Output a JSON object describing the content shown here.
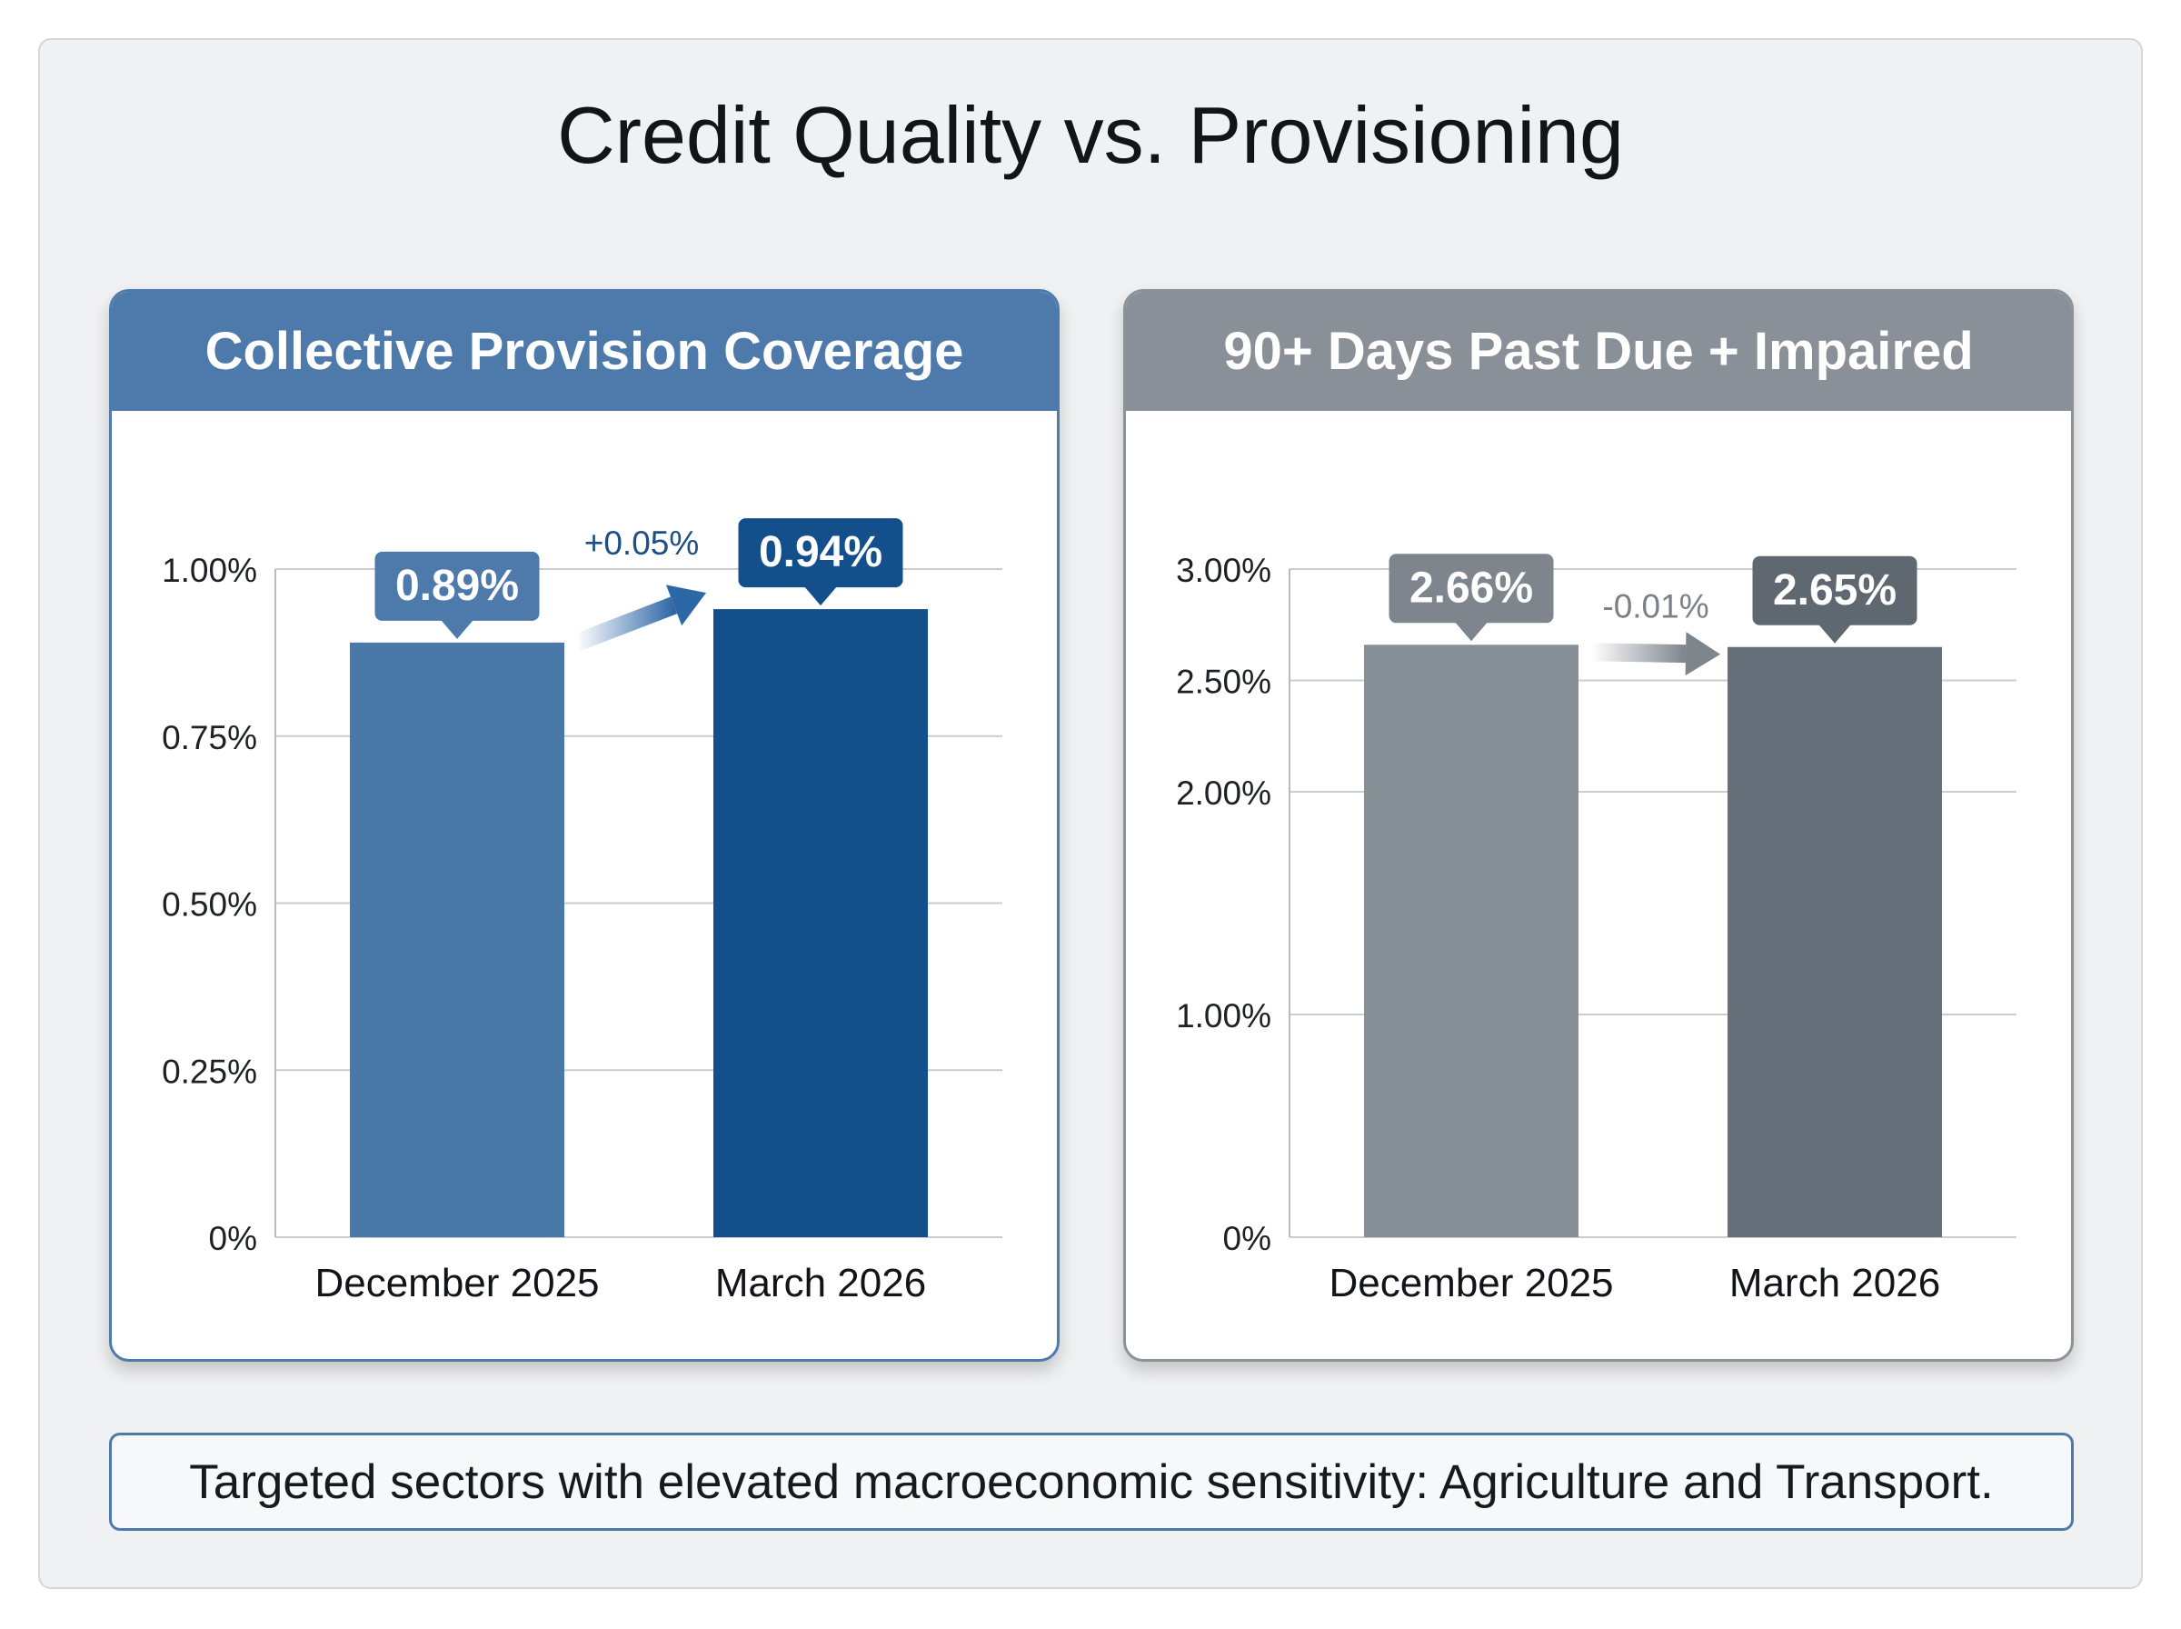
{
  "title": "Credit Quality vs. Provisioning",
  "footnote": "Targeted sectors with elevated macroeconomic sensitivity: Agriculture and Transport.",
  "chart_data": [
    {
      "type": "bar",
      "title": "Collective Provision Coverage",
      "categories": [
        "December 2025",
        "March 2026"
      ],
      "values": [
        0.89,
        0.94
      ],
      "value_labels": [
        "0.89%",
        "0.94%"
      ],
      "ylim": [
        0,
        1.0
      ],
      "y_ticks": [
        0,
        0.25,
        0.5,
        0.75,
        1.0
      ],
      "y_tick_labels": [
        "0%",
        "0.25%",
        "0.50%",
        "0.75%",
        "1.00%"
      ],
      "change_label": "+0.05%",
      "grid": true,
      "colors": {
        "bars": [
          "#4a78a9",
          "#134f8b"
        ],
        "header": "#4d7aab",
        "labels": [
          "#4d7aab",
          "#134f8b"
        ],
        "change": "#1d4f86",
        "arrow": "#2e67a6"
      }
    },
    {
      "type": "bar",
      "title": "90+ Days Past Due + Impaired",
      "categories": [
        "December 2025",
        "March 2026"
      ],
      "values": [
        2.66,
        2.65
      ],
      "value_labels": [
        "2.66%",
        "2.65%"
      ],
      "ylim": [
        0,
        3.0
      ],
      "y_ticks": [
        0,
        1.0,
        2.0,
        2.5,
        3.0
      ],
      "y_tick_labels": [
        "0%",
        "1.00%",
        "2.00%",
        "2.50%",
        "3.00%"
      ],
      "change_label": "-0.01%",
      "grid": true,
      "colors": {
        "bars": [
          "#878f97",
          "#65707a"
        ],
        "header": "#8a9098",
        "labels": [
          "#7e858c",
          "#5f6870"
        ],
        "change": "#7a8087",
        "arrow": "#7d858d"
      }
    }
  ]
}
